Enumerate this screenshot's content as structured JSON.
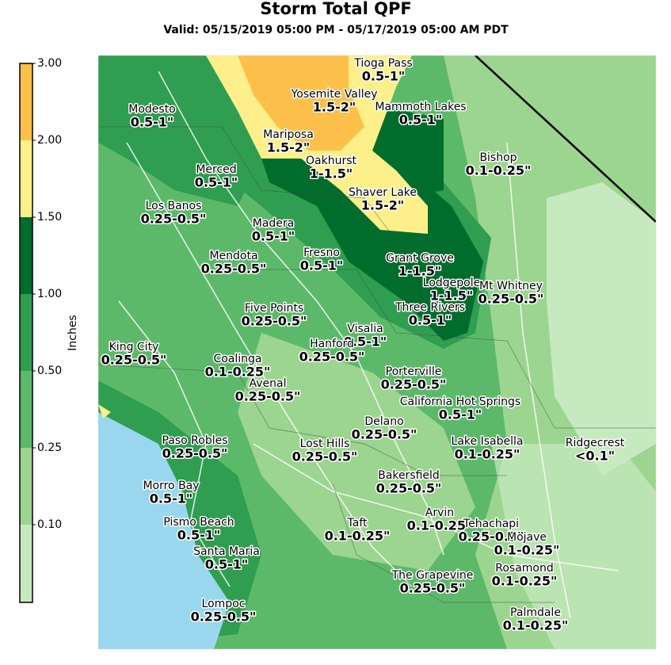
{
  "header": {
    "title": "Storm Total QPF",
    "subtitle": "Valid: 05/15/2019 05:00 PM - 05/17/2019 05:00 AM PDT"
  },
  "legend": {
    "label": "Inches",
    "ticks": [
      "3.00",
      "2.00",
      "1.50",
      "1.00",
      "0.50",
      "0.25",
      "0.10"
    ]
  },
  "places": [
    {
      "name": "Tioga Pass",
      "amount": "0.5-1\""
    },
    {
      "name": "Yosemite Valley",
      "amount": "1.5-2\""
    },
    {
      "name": "Mammoth Lakes",
      "amount": "0.5-1\""
    },
    {
      "name": "Modesto",
      "amount": "0.5-1\""
    },
    {
      "name": "Mariposa",
      "amount": "1.5-2\""
    },
    {
      "name": "Oakhurst",
      "amount": "1-1.5\""
    },
    {
      "name": "Bishop",
      "amount": "0.1-0.25\""
    },
    {
      "name": "Merced",
      "amount": "0.5-1\""
    },
    {
      "name": "Shaver Lake",
      "amount": "1.5-2\""
    },
    {
      "name": "Los Banos",
      "amount": "0.25-0.5\""
    },
    {
      "name": "Madera",
      "amount": "0.5-1\""
    },
    {
      "name": "Fresno",
      "amount": "0.5-1\""
    },
    {
      "name": "Mendota",
      "amount": "0.25-0.5\""
    },
    {
      "name": "Grant Grove",
      "amount": "1-1.5\""
    },
    {
      "name": "Lodgepole",
      "amount": "1-1.5\""
    },
    {
      "name": "Mt Whitney",
      "amount": "0.25-0.5\""
    },
    {
      "name": "Five Points",
      "amount": "0.25-0.5\""
    },
    {
      "name": "Three Rivers",
      "amount": "0.5-1\""
    },
    {
      "name": "Visalia",
      "amount": "0.5-1\""
    },
    {
      "name": "King City",
      "amount": "0.25-0.5\""
    },
    {
      "name": "Hanford",
      "amount": "0.25-0.5\""
    },
    {
      "name": "Coalinga",
      "amount": "0.1-0.25\""
    },
    {
      "name": "Avenal",
      "amount": "0.25-0.5\""
    },
    {
      "name": "Porterville",
      "amount": "0.25-0.5\""
    },
    {
      "name": "California Hot Springs",
      "amount": "0.5-1\""
    },
    {
      "name": "Delano",
      "amount": "0.25-0.5\""
    },
    {
      "name": "Paso Robles",
      "amount": "0.25-0.5\""
    },
    {
      "name": "Lost Hills",
      "amount": "0.25-0.5\""
    },
    {
      "name": "Lake Isabella",
      "amount": "0.1-0.25\""
    },
    {
      "name": "Ridgecrest",
      "amount": "<0.1\""
    },
    {
      "name": "Bakersfield",
      "amount": "0.25-0.5\""
    },
    {
      "name": "Morro Bay",
      "amount": "0.5-1\""
    },
    {
      "name": "Arvin",
      "amount": "0.1-0.25\""
    },
    {
      "name": "Tehachapi",
      "amount": "0.25-0.5\""
    },
    {
      "name": "Pismo Beach",
      "amount": "0.5-1\""
    },
    {
      "name": "Taft",
      "amount": "0.1-0.25\""
    },
    {
      "name": "Mojave",
      "amount": "0.1-0.25\""
    },
    {
      "name": "Santa Maria",
      "amount": "0.5-1\""
    },
    {
      "name": "Rosamond",
      "amount": "0.1-0.25\""
    },
    {
      "name": "The Grapevine",
      "amount": "0.25-0.5\""
    },
    {
      "name": "Lompoc",
      "amount": "0.25-0.5\""
    },
    {
      "name": "Palmdale",
      "amount": "0.1-0.25\""
    }
  ]
}
